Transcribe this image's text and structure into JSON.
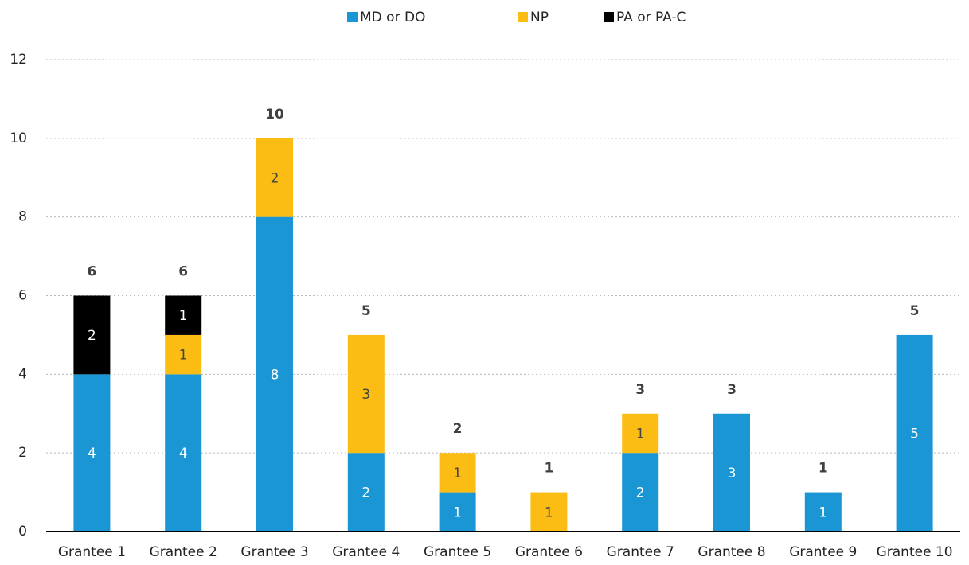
{
  "chart_data": {
    "type": "stacked_bar",
    "categories": [
      "Grantee 1",
      "Grantee 2",
      "Grantee 3",
      "Grantee 4",
      "Grantee 5",
      "Grantee 6",
      "Grantee 7",
      "Grantee 8",
      "Grantee 9",
      "Grantee 10"
    ],
    "series": [
      {
        "name": "MD or DO",
        "color": "#1a96d4",
        "values": [
          4,
          4,
          8,
          2,
          1,
          0,
          2,
          3,
          1,
          5
        ]
      },
      {
        "name": "NP",
        "color": "#fbbc14",
        "values": [
          0,
          1,
          2,
          3,
          1,
          1,
          1,
          0,
          0,
          0
        ]
      },
      {
        "name": "PA or PA-C",
        "color": "#000000",
        "values": [
          2,
          1,
          0,
          0,
          0,
          0,
          0,
          0,
          0,
          0
        ]
      }
    ],
    "totals": [
      6,
      6,
      10,
      5,
      2,
      1,
      3,
      3,
      1,
      5
    ],
    "ylim": [
      0,
      12
    ],
    "yticks": [
      0,
      2,
      4,
      6,
      8,
      10,
      12
    ],
    "grid": true,
    "legend": "top"
  }
}
